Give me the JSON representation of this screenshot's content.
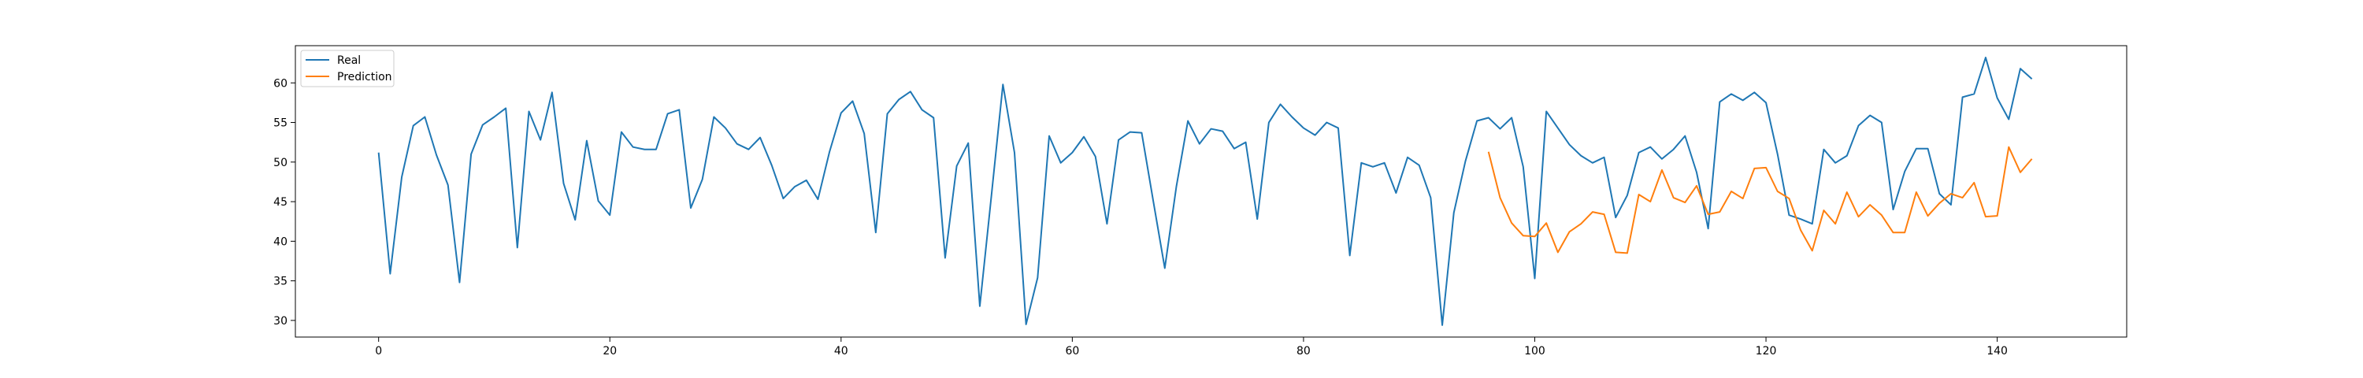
{
  "chart_data": {
    "type": "line",
    "title": "",
    "xlabel": "",
    "ylabel": "",
    "xlim": [
      -7.2,
      151.2
    ],
    "ylim": [
      27.9,
      64.7
    ],
    "x_ticks": [
      0,
      20,
      40,
      60,
      80,
      100,
      120,
      140
    ],
    "y_ticks": [
      30,
      35,
      40,
      45,
      50,
      55,
      60
    ],
    "x_tick_labels": [
      "0",
      "20",
      "40",
      "60",
      "80",
      "100",
      "120",
      "140"
    ],
    "y_tick_labels": [
      "30",
      "35",
      "40",
      "45",
      "50",
      "55",
      "60"
    ],
    "grid": false,
    "legend": {
      "location": "upper-left"
    },
    "series": [
      {
        "name": "Real",
        "color": "#1f77b4",
        "x_start": 0,
        "values": [
          51.2,
          35.9,
          48.1,
          54.6,
          55.7,
          50.9,
          47.1,
          34.8,
          51.0,
          54.7,
          55.7,
          56.8,
          39.2,
          56.4,
          52.8,
          58.8,
          47.3,
          42.7,
          52.7,
          45.1,
          43.3,
          53.8,
          51.9,
          51.6,
          51.6,
          56.1,
          56.6,
          44.2,
          47.8,
          55.7,
          54.3,
          52.3,
          51.6,
          53.1,
          49.6,
          45.4,
          46.9,
          47.7,
          45.3,
          51.3,
          56.2,
          57.7,
          53.6,
          41.1,
          56.1,
          57.9,
          58.9,
          56.6,
          55.6,
          37.9,
          49.5,
          52.4,
          31.8,
          45.7,
          59.8,
          51.2,
          29.5,
          35.4,
          53.3,
          49.9,
          51.2,
          53.2,
          50.7,
          42.2,
          52.8,
          53.8,
          53.7,
          45.1,
          36.6,
          46.9,
          55.2,
          52.3,
          54.2,
          53.9,
          51.7,
          52.5,
          42.8,
          55.0,
          57.3,
          55.7,
          54.3,
          53.4,
          55.0,
          54.3,
          38.2,
          49.9,
          49.4,
          49.9,
          46.1,
          50.6,
          49.6,
          45.5,
          29.4,
          43.6,
          50.1,
          55.2,
          55.6,
          54.2,
          55.6,
          49.4,
          35.3,
          56.4,
          54.3,
          52.2,
          50.8,
          49.9,
          50.6,
          43.0,
          45.8,
          51.2,
          51.9,
          50.4,
          51.6,
          53.3,
          48.7,
          41.6,
          57.6,
          58.6,
          57.8,
          58.8,
          57.5,
          51.0,
          43.3,
          42.8,
          42.2,
          51.6,
          49.9,
          50.8,
          54.6,
          55.9,
          55.0,
          44.0,
          48.8,
          51.7,
          51.7,
          46.0,
          44.6,
          58.2,
          58.6,
          63.2,
          58.1,
          55.4,
          61.8,
          60.5
        ]
      },
      {
        "name": "Prediction",
        "color": "#ff7f0e",
        "x_start": 96,
        "values": [
          51.3,
          45.5,
          42.3,
          40.7,
          40.6,
          42.3,
          38.6,
          41.2,
          42.2,
          43.7,
          43.4,
          38.6,
          38.5,
          45.9,
          45.0,
          49.0,
          45.5,
          44.9,
          47.0,
          43.4,
          43.7,
          46.3,
          45.4,
          49.2,
          49.3,
          46.3,
          45.4,
          41.4,
          38.8,
          43.9,
          42.2,
          46.2,
          43.1,
          44.6,
          43.3,
          41.1,
          41.1,
          46.2,
          43.2,
          44.8,
          46.0,
          45.5,
          47.4,
          43.1,
          43.2,
          51.9,
          48.7,
          50.4
        ]
      }
    ]
  }
}
